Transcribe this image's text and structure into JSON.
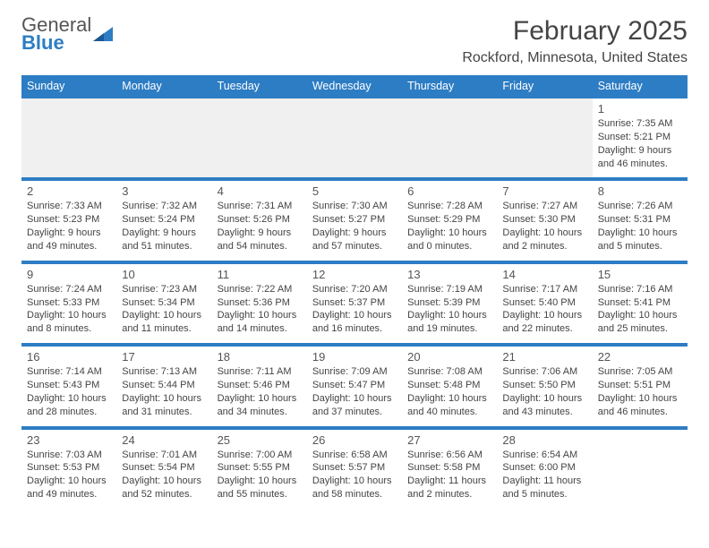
{
  "logo": {
    "line1": "General",
    "line2": "Blue"
  },
  "title": "February 2025",
  "location": "Rockford, Minnesota, United States",
  "colors": {
    "accent": "#2d7dc4",
    "bg": "#ffffff",
    "text": "#333333",
    "shade": "#f0f0f0"
  },
  "day_headers": [
    "Sunday",
    "Monday",
    "Tuesday",
    "Wednesday",
    "Thursday",
    "Friday",
    "Saturday"
  ],
  "weeks": [
    [
      {
        "blank": true
      },
      {
        "blank": true
      },
      {
        "blank": true
      },
      {
        "blank": true
      },
      {
        "blank": true
      },
      {
        "blank": true
      },
      {
        "day": "1",
        "sunrise": "Sunrise: 7:35 AM",
        "sunset": "Sunset: 5:21 PM",
        "daylight1": "Daylight: 9 hours",
        "daylight2": "and 46 minutes."
      }
    ],
    [
      {
        "day": "2",
        "sunrise": "Sunrise: 7:33 AM",
        "sunset": "Sunset: 5:23 PM",
        "daylight1": "Daylight: 9 hours",
        "daylight2": "and 49 minutes."
      },
      {
        "day": "3",
        "sunrise": "Sunrise: 7:32 AM",
        "sunset": "Sunset: 5:24 PM",
        "daylight1": "Daylight: 9 hours",
        "daylight2": "and 51 minutes."
      },
      {
        "day": "4",
        "sunrise": "Sunrise: 7:31 AM",
        "sunset": "Sunset: 5:26 PM",
        "daylight1": "Daylight: 9 hours",
        "daylight2": "and 54 minutes."
      },
      {
        "day": "5",
        "sunrise": "Sunrise: 7:30 AM",
        "sunset": "Sunset: 5:27 PM",
        "daylight1": "Daylight: 9 hours",
        "daylight2": "and 57 minutes."
      },
      {
        "day": "6",
        "sunrise": "Sunrise: 7:28 AM",
        "sunset": "Sunset: 5:29 PM",
        "daylight1": "Daylight: 10 hours",
        "daylight2": "and 0 minutes."
      },
      {
        "day": "7",
        "sunrise": "Sunrise: 7:27 AM",
        "sunset": "Sunset: 5:30 PM",
        "daylight1": "Daylight: 10 hours",
        "daylight2": "and 2 minutes."
      },
      {
        "day": "8",
        "sunrise": "Sunrise: 7:26 AM",
        "sunset": "Sunset: 5:31 PM",
        "daylight1": "Daylight: 10 hours",
        "daylight2": "and 5 minutes."
      }
    ],
    [
      {
        "day": "9",
        "sunrise": "Sunrise: 7:24 AM",
        "sunset": "Sunset: 5:33 PM",
        "daylight1": "Daylight: 10 hours",
        "daylight2": "and 8 minutes."
      },
      {
        "day": "10",
        "sunrise": "Sunrise: 7:23 AM",
        "sunset": "Sunset: 5:34 PM",
        "daylight1": "Daylight: 10 hours",
        "daylight2": "and 11 minutes."
      },
      {
        "day": "11",
        "sunrise": "Sunrise: 7:22 AM",
        "sunset": "Sunset: 5:36 PM",
        "daylight1": "Daylight: 10 hours",
        "daylight2": "and 14 minutes."
      },
      {
        "day": "12",
        "sunrise": "Sunrise: 7:20 AM",
        "sunset": "Sunset: 5:37 PM",
        "daylight1": "Daylight: 10 hours",
        "daylight2": "and 16 minutes."
      },
      {
        "day": "13",
        "sunrise": "Sunrise: 7:19 AM",
        "sunset": "Sunset: 5:39 PM",
        "daylight1": "Daylight: 10 hours",
        "daylight2": "and 19 minutes."
      },
      {
        "day": "14",
        "sunrise": "Sunrise: 7:17 AM",
        "sunset": "Sunset: 5:40 PM",
        "daylight1": "Daylight: 10 hours",
        "daylight2": "and 22 minutes."
      },
      {
        "day": "15",
        "sunrise": "Sunrise: 7:16 AM",
        "sunset": "Sunset: 5:41 PM",
        "daylight1": "Daylight: 10 hours",
        "daylight2": "and 25 minutes."
      }
    ],
    [
      {
        "day": "16",
        "sunrise": "Sunrise: 7:14 AM",
        "sunset": "Sunset: 5:43 PM",
        "daylight1": "Daylight: 10 hours",
        "daylight2": "and 28 minutes."
      },
      {
        "day": "17",
        "sunrise": "Sunrise: 7:13 AM",
        "sunset": "Sunset: 5:44 PM",
        "daylight1": "Daylight: 10 hours",
        "daylight2": "and 31 minutes."
      },
      {
        "day": "18",
        "sunrise": "Sunrise: 7:11 AM",
        "sunset": "Sunset: 5:46 PM",
        "daylight1": "Daylight: 10 hours",
        "daylight2": "and 34 minutes."
      },
      {
        "day": "19",
        "sunrise": "Sunrise: 7:09 AM",
        "sunset": "Sunset: 5:47 PM",
        "daylight1": "Daylight: 10 hours",
        "daylight2": "and 37 minutes."
      },
      {
        "day": "20",
        "sunrise": "Sunrise: 7:08 AM",
        "sunset": "Sunset: 5:48 PM",
        "daylight1": "Daylight: 10 hours",
        "daylight2": "and 40 minutes."
      },
      {
        "day": "21",
        "sunrise": "Sunrise: 7:06 AM",
        "sunset": "Sunset: 5:50 PM",
        "daylight1": "Daylight: 10 hours",
        "daylight2": "and 43 minutes."
      },
      {
        "day": "22",
        "sunrise": "Sunrise: 7:05 AM",
        "sunset": "Sunset: 5:51 PM",
        "daylight1": "Daylight: 10 hours",
        "daylight2": "and 46 minutes."
      }
    ],
    [
      {
        "day": "23",
        "sunrise": "Sunrise: 7:03 AM",
        "sunset": "Sunset: 5:53 PM",
        "daylight1": "Daylight: 10 hours",
        "daylight2": "and 49 minutes."
      },
      {
        "day": "24",
        "sunrise": "Sunrise: 7:01 AM",
        "sunset": "Sunset: 5:54 PM",
        "daylight1": "Daylight: 10 hours",
        "daylight2": "and 52 minutes."
      },
      {
        "day": "25",
        "sunrise": "Sunrise: 7:00 AM",
        "sunset": "Sunset: 5:55 PM",
        "daylight1": "Daylight: 10 hours",
        "daylight2": "and 55 minutes."
      },
      {
        "day": "26",
        "sunrise": "Sunrise: 6:58 AM",
        "sunset": "Sunset: 5:57 PM",
        "daylight1": "Daylight: 10 hours",
        "daylight2": "and 58 minutes."
      },
      {
        "day": "27",
        "sunrise": "Sunrise: 6:56 AM",
        "sunset": "Sunset: 5:58 PM",
        "daylight1": "Daylight: 11 hours",
        "daylight2": "and 2 minutes."
      },
      {
        "day": "28",
        "sunrise": "Sunrise: 6:54 AM",
        "sunset": "Sunset: 6:00 PM",
        "daylight1": "Daylight: 11 hours",
        "daylight2": "and 5 minutes."
      },
      {
        "blank": true
      }
    ]
  ]
}
